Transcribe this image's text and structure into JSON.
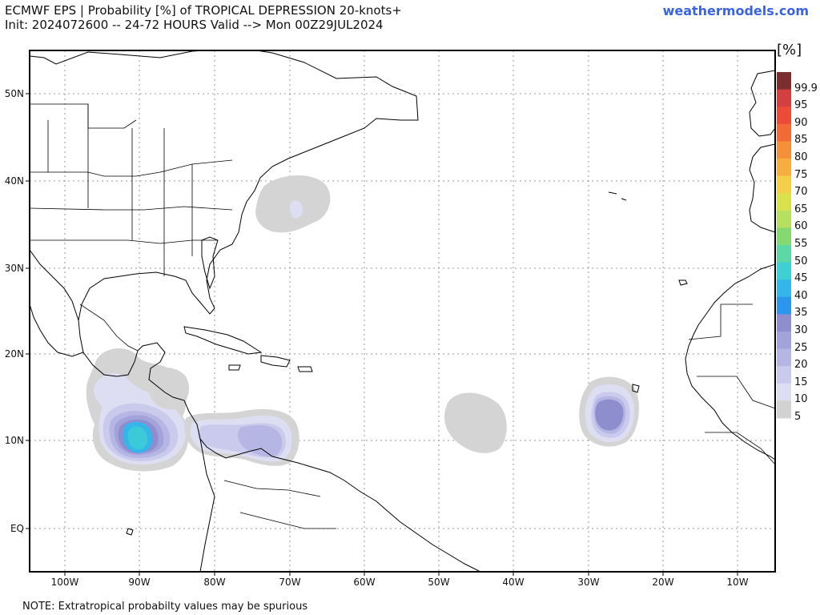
{
  "header": {
    "title_line1": "ECMWF EPS | Probability [%] of TROPICAL DEPRESSION 20-knots+",
    "title_line2": "Init: 2024072600 -- 24-72 HOURS Valid --> Mon 00Z29JUL2024",
    "brand": "weathermodels.com"
  },
  "footer_note": "NOTE: Extratropical probabilty values may be spurious",
  "colorbar": {
    "unit": "[%]",
    "labels": [
      "99.9",
      "95",
      "90",
      "85",
      "80",
      "75",
      "70",
      "65",
      "60",
      "55",
      "50",
      "45",
      "40",
      "35",
      "30",
      "25",
      "20",
      "15",
      "10",
      "5"
    ],
    "colors": [
      "#7a2e2e",
      "#d24040",
      "#ec4b3a",
      "#f26a35",
      "#f5903a",
      "#f6ae3e",
      "#f3cf4a",
      "#d9e24a",
      "#b7e060",
      "#86d873",
      "#5cd7a6",
      "#3fcfd4",
      "#35b6ea",
      "#2b96ec",
      "#8e8ecf",
      "#a3a3db",
      "#b6b6e4",
      "#cacaed",
      "#dedef3",
      "#d2d2d2"
    ]
  },
  "axes": {
    "lon_labels": [
      "100W",
      "90W",
      "80W",
      "70W",
      "60W",
      "50W",
      "40W",
      "30W",
      "20W",
      "10W"
    ],
    "lat_labels": [
      "50N",
      "40N",
      "30N",
      "20N",
      "10N",
      "EQ"
    ]
  }
}
